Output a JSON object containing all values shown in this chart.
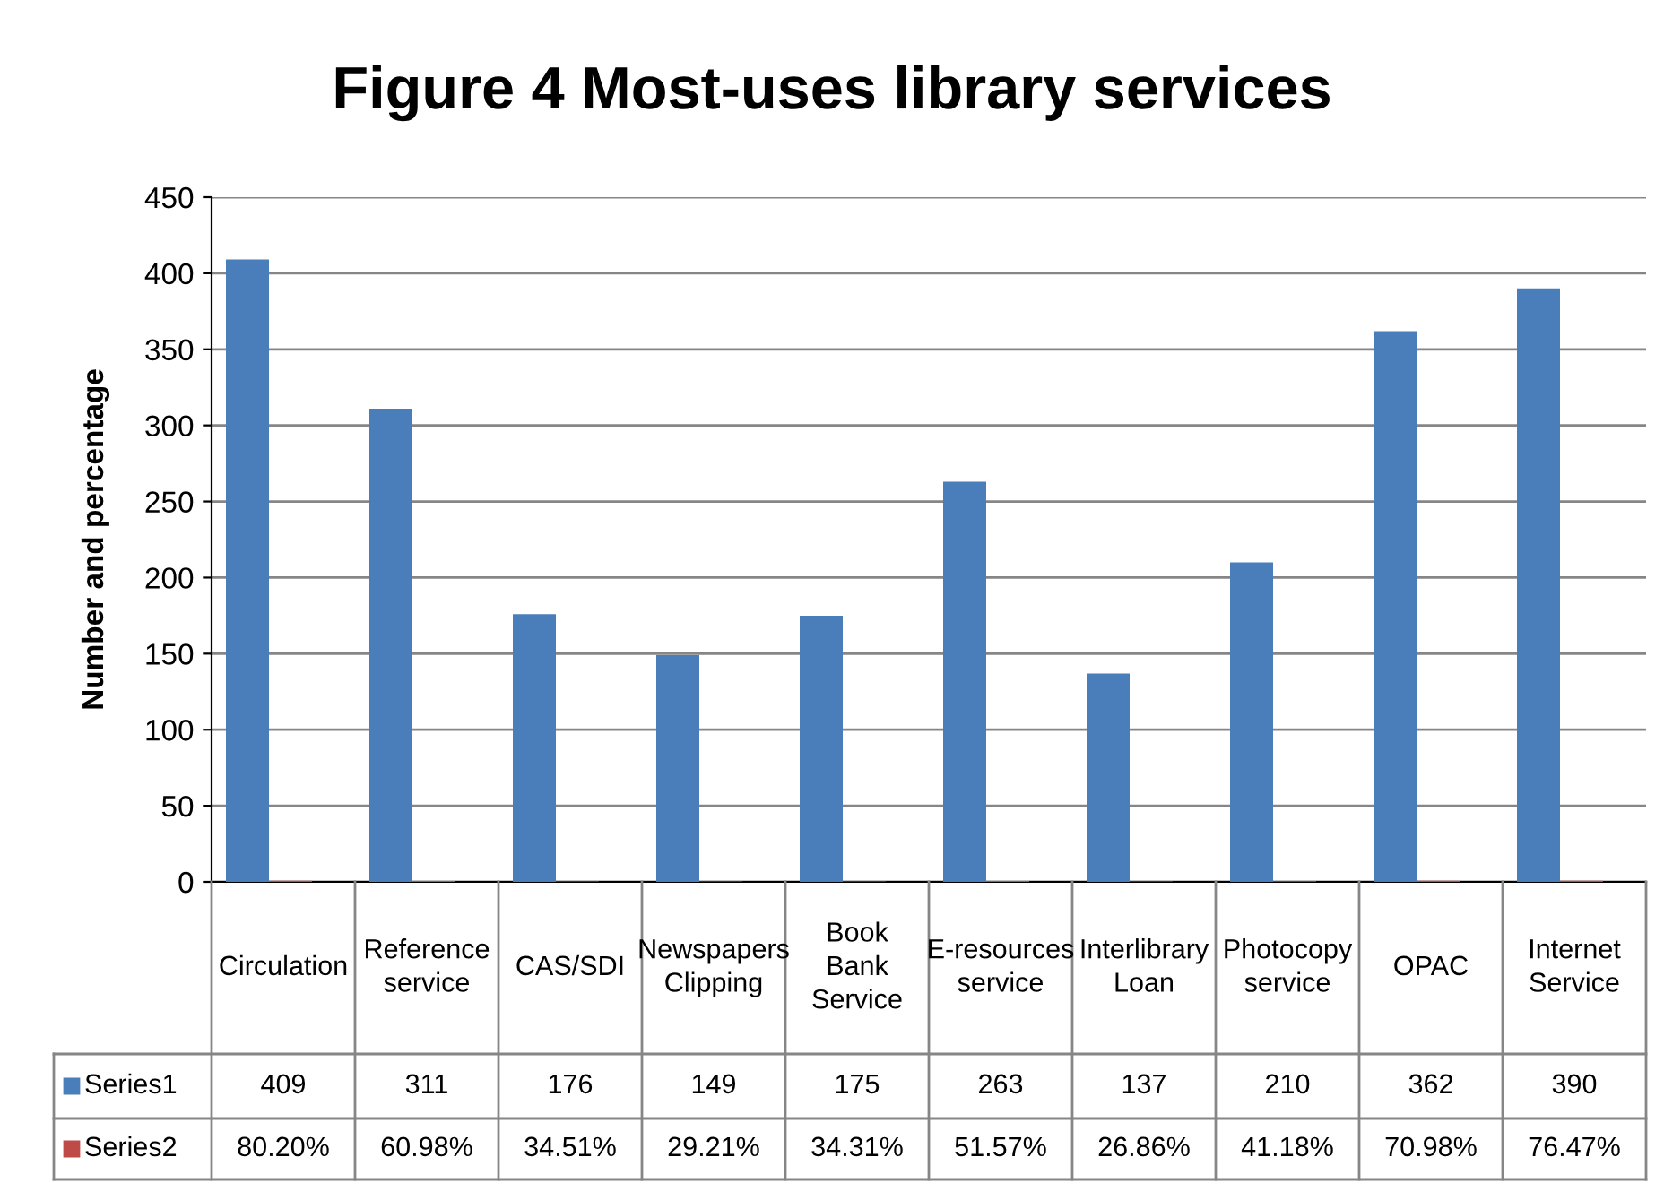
{
  "chart_data": {
    "type": "bar",
    "title": "Figure 4 Most-uses library services",
    "ylabel": "Number and percentage",
    "categories": [
      "Circulation",
      "Reference service",
      "CAS/SDI",
      "Newspapers Clipping",
      "Book Bank Service",
      "E-resources service",
      "Interlibrary Loan",
      "Photocopy service",
      "OPAC",
      "Internet Service"
    ],
    "series": [
      {
        "name": "Series1",
        "color": "#4a7ebb",
        "values": [
          409,
          311,
          176,
          149,
          175,
          263,
          137,
          210,
          362,
          390
        ],
        "value_labels": [
          "409",
          "311",
          "176",
          "149",
          "175",
          "263",
          "137",
          "210",
          "362",
          "390"
        ]
      },
      {
        "name": "Series2",
        "color": "#be4b48",
        "values": [
          0.802,
          0.6098,
          0.3451,
          0.2921,
          0.3431,
          0.5157,
          0.2686,
          0.4118,
          0.7098,
          0.7647
        ],
        "value_labels": [
          "80.20%",
          "60.98%",
          "34.51%",
          "29.21%",
          "34.31%",
          "51.57%",
          "26.86%",
          "41.18%",
          "70.98%",
          "76.47%"
        ]
      }
    ],
    "ylim": [
      0,
      450
    ],
    "yticks": [
      0,
      50,
      100,
      150,
      200,
      250,
      300,
      350,
      400,
      450
    ],
    "grid": "y",
    "legend": "bottom"
  }
}
